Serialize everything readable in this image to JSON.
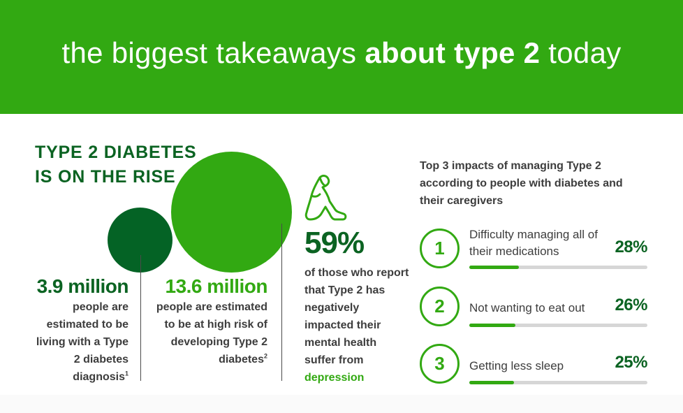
{
  "banner": {
    "title_light_1": "the biggest takeaways ",
    "title_bold": "about type 2",
    "title_light_2": " today",
    "background_color": "#32a912"
  },
  "section": {
    "title": "TYPE 2 DIABETES IS ON THE RISE"
  },
  "stats": [
    {
      "number": "3.9 million",
      "description": "people are estimated to be living with a Type 2 diabetes diagnosis",
      "footnote": "1",
      "color": "#046325"
    },
    {
      "number": "13.6 million",
      "description": "people are estimated to be at high risk of developing Type 2 diabetes",
      "footnote": "2",
      "color": "#32a912"
    }
  ],
  "depression": {
    "icon": "sitting-person-head-in-hands-icon",
    "number": "59%",
    "description": "of those who report that Type 2 has negatively impacted their mental health suffer from",
    "highlight": "depression"
  },
  "impacts": {
    "title": "Top 3 impacts of managing Type 2 according to people with diabetes and their caregivers",
    "items": [
      {
        "rank": "1",
        "label": "Difficulty managing all of their medications",
        "percent": "28%",
        "value": 28
      },
      {
        "rank": "2",
        "label": "Not wanting to eat out",
        "percent": "26%",
        "value": 26
      },
      {
        "rank": "3",
        "label": "Getting less sleep",
        "percent": "25%",
        "value": 25
      }
    ]
  },
  "colors": {
    "bright_green": "#32a912",
    "dark_green": "#046325",
    "text_gray": "#3d3d3d",
    "bar_track": "#d6d6d6"
  }
}
